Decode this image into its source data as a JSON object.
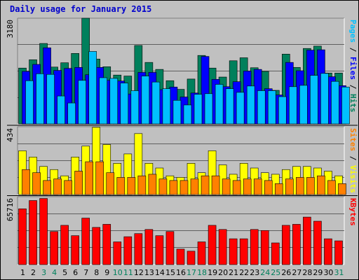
{
  "title": "Daily usage for January 2015",
  "colors": {
    "hits": "#00805c",
    "files": "#0000ff",
    "pages": "#00c0ff",
    "visits": "#ffff00",
    "sites": "#ff8000",
    "kbytes": "#ff0000",
    "weekend": "#00805c",
    "weekday": "#000000",
    "separator": "#000000"
  },
  "chart_data": [
    {
      "type": "bar",
      "panel": "top",
      "ymax_label": "3180",
      "ylim": [
        0,
        3180
      ],
      "right_label": [
        {
          "text": "Pages",
          "color": "#00c0ff"
        },
        {
          "text": " / ",
          "color": "#000000"
        },
        {
          "text": "Files",
          "color": "#0000ff"
        },
        {
          "text": " / ",
          "color": "#000000"
        },
        {
          "text": "Hits",
          "color": "#00805c"
        }
      ],
      "categories": [
        "1",
        "2",
        "3",
        "4",
        "5",
        "6",
        "7",
        "8",
        "9",
        "10",
        "11",
        "12",
        "13",
        "14",
        "15",
        "16",
        "17",
        "18",
        "19",
        "20",
        "21",
        "22",
        "23",
        "24",
        "25",
        "26",
        "27",
        "28",
        "29",
        "30",
        "31"
      ],
      "weekend_days": [
        3,
        4,
        10,
        11,
        17,
        18,
        24,
        25,
        31
      ],
      "series": [
        {
          "name": "Hits",
          "color": "#00805c",
          "values": [
            1680,
            1930,
            2420,
            1710,
            1840,
            2120,
            3180,
            1950,
            1720,
            1470,
            1440,
            2360,
            1850,
            1640,
            1300,
            1040,
            1350,
            2060,
            1680,
            1410,
            1900,
            1990,
            1690,
            1580,
            1010,
            2100,
            1700,
            2270,
            2340,
            1530,
            1530
          ]
        },
        {
          "name": "Files",
          "color": "#0000ff",
          "values": [
            1580,
            1790,
            2290,
            1610,
            1670,
            1700,
            1480,
            1700,
            1310,
            1290,
            900,
            1550,
            1550,
            1030,
            1110,
            810,
            930,
            2030,
            1340,
            1120,
            1270,
            1590,
            1640,
            1060,
            870,
            1850,
            1600,
            2220,
            2230,
            1420,
            1150
          ]
        },
        {
          "name": "Pages",
          "color": "#00c0ff",
          "values": [
            1300,
            1510,
            1490,
            840,
            630,
            1310,
            2180,
            1390,
            1370,
            1230,
            1000,
            1440,
            1260,
            1060,
            710,
            570,
            890,
            910,
            1190,
            1060,
            950,
            1140,
            1000,
            1000,
            820,
            1120,
            1160,
            1460,
            1520,
            1280,
            1110
          ]
        }
      ]
    },
    {
      "type": "bar",
      "panel": "middle",
      "ymax_label": "434",
      "ylim": [
        0,
        434
      ],
      "right_label": [
        {
          "text": "Sites",
          "color": "#ff8000"
        },
        {
          "text": " / ",
          "color": "#000000"
        },
        {
          "text": "Visits",
          "color": "#ffff00"
        }
      ],
      "categories": [
        "1",
        "2",
        "3",
        "4",
        "5",
        "6",
        "7",
        "8",
        "9",
        "10",
        "11",
        "12",
        "13",
        "14",
        "15",
        "16",
        "17",
        "18",
        "19",
        "20",
        "21",
        "22",
        "23",
        "24",
        "25",
        "26",
        "27",
        "28",
        "29",
        "30",
        "31"
      ],
      "series": [
        {
          "name": "Visits",
          "color": "#ffff00",
          "values": [
            280,
            240,
            180,
            160,
            120,
            240,
            310,
            430,
            320,
            200,
            260,
            390,
            200,
            170,
            120,
            110,
            200,
            140,
            280,
            190,
            130,
            200,
            170,
            140,
            130,
            160,
            180,
            180,
            170,
            150,
            120
          ]
        },
        {
          "name": "Sites",
          "color": "#ff8000",
          "values": [
            160,
            140,
            90,
            100,
            90,
            150,
            210,
            210,
            140,
            110,
            110,
            120,
            130,
            100,
            90,
            90,
            100,
            120,
            120,
            100,
            90,
            100,
            100,
            90,
            70,
            100,
            110,
            110,
            120,
            90,
            70
          ]
        }
      ]
    },
    {
      "type": "bar",
      "panel": "bottom",
      "ymax_label": "65716",
      "ylim": [
        0,
        65716
      ],
      "right_label": [
        {
          "text": "KBytes",
          "color": "#ff0000"
        }
      ],
      "categories": [
        "1",
        "2",
        "3",
        "4",
        "5",
        "6",
        "7",
        "8",
        "9",
        "10",
        "11",
        "12",
        "13",
        "14",
        "15",
        "16",
        "17",
        "18",
        "19",
        "20",
        "21",
        "22",
        "23",
        "24",
        "25",
        "26",
        "27",
        "28",
        "29",
        "30",
        "31"
      ],
      "series": [
        {
          "name": "KBytes",
          "color": "#ff0000",
          "values": [
            54000,
            62000,
            64000,
            32000,
            38000,
            28000,
            45000,
            36000,
            39000,
            22000,
            27000,
            30000,
            34000,
            28000,
            32000,
            15000,
            13000,
            22000,
            38000,
            34000,
            25000,
            25000,
            34000,
            33000,
            21000,
            38000,
            39000,
            46000,
            42000,
            25000,
            23000
          ]
        }
      ]
    }
  ]
}
